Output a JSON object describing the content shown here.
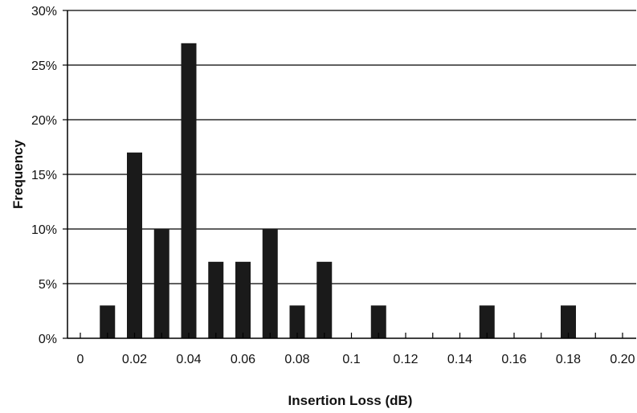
{
  "chart_data": {
    "type": "bar",
    "title": "",
    "xlabel": "Insertion Loss (dB)",
    "ylabel": "Frequency",
    "x_ticks": [
      "0",
      "0.02",
      "0.04",
      "0.06",
      "0.08",
      "0.1",
      "0.12",
      "0.14",
      "0.16",
      "0.18",
      "0.20"
    ],
    "y_ticks": [
      "0%",
      "5%",
      "10%",
      "15%",
      "20%",
      "25%",
      "30%"
    ],
    "xlim": [
      0,
      0.2
    ],
    "ylim": [
      0,
      30
    ],
    "grid": {
      "horizontal": true,
      "vertical": false
    },
    "legend": "none",
    "categories": [
      "0.01",
      "0.02",
      "0.03",
      "0.04",
      "0.05",
      "0.06",
      "0.07",
      "0.08",
      "0.09",
      "0.11",
      "0.15",
      "0.18"
    ],
    "x": [
      0.01,
      0.02,
      0.03,
      0.04,
      0.05,
      0.06,
      0.07,
      0.08,
      0.09,
      0.11,
      0.15,
      0.18
    ],
    "values": [
      3,
      17,
      10,
      27,
      7,
      7,
      10,
      3,
      7,
      3,
      3,
      3
    ],
    "bar_color": "#1a1a1a",
    "axis_color": "#000000",
    "grid_color": "#000000"
  }
}
